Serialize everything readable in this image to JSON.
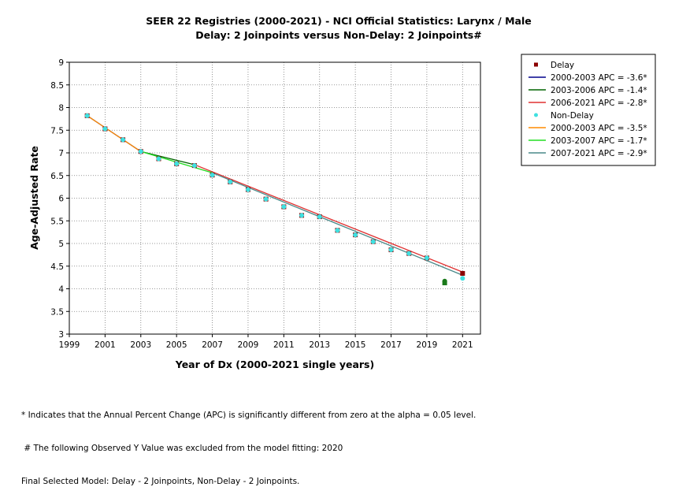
{
  "chart_data": {
    "type": "line",
    "title_lines": [
      "SEER 22 Registries (2000-2021) - NCI Official Statistics: Larynx / Male",
      "Delay: 2 Joinpoints  versus  Non-Delay: 2 Joinpoints#"
    ],
    "xlabel": "Year of Dx (2000-2021 single years)",
    "ylabel": "Age-Adjusted Rate",
    "xlim": [
      1999,
      2022
    ],
    "ylim": [
      3,
      9
    ],
    "x_ticks": [
      "1999",
      "2001",
      "2003",
      "2005",
      "2007",
      "2009",
      "2011",
      "2013",
      "2015",
      "2017",
      "2019",
      "2021"
    ],
    "y_ticks": [
      "3",
      "3.5",
      "4",
      "4.5",
      "5",
      "5.5",
      "6",
      "6.5",
      "7",
      "7.5",
      "8",
      "8.5",
      "9"
    ],
    "grid": true,
    "legend_position": "right",
    "observed": [
      {
        "name": "Delay",
        "color": "#8b0000",
        "marker": "square",
        "points": [
          [
            2000,
            7.82
          ],
          [
            2001,
            7.53
          ],
          [
            2002,
            7.29
          ],
          [
            2003,
            7.03
          ],
          [
            2004,
            6.87
          ],
          [
            2005,
            6.76
          ],
          [
            2006,
            6.72
          ],
          [
            2007,
            6.51
          ],
          [
            2008,
            6.36
          ],
          [
            2009,
            6.19
          ],
          [
            2010,
            5.98
          ],
          [
            2011,
            5.81
          ],
          [
            2012,
            5.62
          ],
          [
            2013,
            5.59
          ],
          [
            2014,
            5.29
          ],
          [
            2015,
            5.19
          ],
          [
            2016,
            5.04
          ],
          [
            2017,
            4.86
          ],
          [
            2018,
            4.78
          ],
          [
            2019,
            4.68
          ],
          [
            2021,
            4.34
          ]
        ],
        "excluded_points": [
          [
            2020,
            4.13
          ]
        ]
      },
      {
        "name": "Non-Delay",
        "color": "#40e0e0",
        "marker": "circle",
        "points": [
          [
            2000,
            7.82
          ],
          [
            2001,
            7.53
          ],
          [
            2002,
            7.29
          ],
          [
            2003,
            7.03
          ],
          [
            2004,
            6.87
          ],
          [
            2005,
            6.76
          ],
          [
            2006,
            6.72
          ],
          [
            2007,
            6.51
          ],
          [
            2008,
            6.36
          ],
          [
            2009,
            6.19
          ],
          [
            2010,
            5.98
          ],
          [
            2011,
            5.81
          ],
          [
            2012,
            5.62
          ],
          [
            2013,
            5.59
          ],
          [
            2014,
            5.29
          ],
          [
            2015,
            5.19
          ],
          [
            2016,
            5.04
          ],
          [
            2017,
            4.86
          ],
          [
            2018,
            4.78
          ],
          [
            2019,
            4.68
          ],
          [
            2021,
            4.23
          ]
        ],
        "excluded_points": [
          [
            2020,
            4.17
          ]
        ]
      }
    ],
    "segments": [
      {
        "label": "2000-2003 APC  =  -3.6*",
        "color": "#00008b",
        "points": [
          [
            2000,
            7.82
          ],
          [
            2003,
            7.03
          ]
        ]
      },
      {
        "label": "2003-2006 APC  =  -1.4*",
        "color": "#006400",
        "points": [
          [
            2003,
            7.03
          ],
          [
            2006,
            6.74
          ]
        ]
      },
      {
        "label": "2006-2021 APC  =  -2.8*",
        "color": "#e03030",
        "points": [
          [
            2006,
            6.74
          ],
          [
            2021,
            4.37
          ]
        ]
      },
      {
        "label": "2000-2003 APC  =  -3.5*",
        "color": "#ff8c00",
        "points": [
          [
            2000,
            7.82
          ],
          [
            2003,
            7.03
          ]
        ]
      },
      {
        "label": "2003-2007 APC  =  -1.7*",
        "color": "#22dd22",
        "points": [
          [
            2003,
            7.03
          ],
          [
            2007,
            6.56
          ]
        ]
      },
      {
        "label": "2007-2021 APC  =  -2.9*",
        "color": "#4a8a8a",
        "points": [
          [
            2007,
            6.56
          ],
          [
            2021,
            4.3
          ]
        ]
      }
    ],
    "legend": [
      {
        "kind": "marker",
        "label": "Delay",
        "color": "#8b0000",
        "marker": "square"
      },
      {
        "kind": "line",
        "label": "2000-2003 APC  =  -3.6*",
        "color": "#00008b"
      },
      {
        "kind": "line",
        "label": "2003-2006 APC  =  -1.4*",
        "color": "#006400"
      },
      {
        "kind": "line",
        "label": "2006-2021 APC  =  -2.8*",
        "color": "#e03030"
      },
      {
        "kind": "marker",
        "label": "Non-Delay",
        "color": "#40e0e0",
        "marker": "circle"
      },
      {
        "kind": "line",
        "label": "2000-2003 APC  =  -3.5*",
        "color": "#ff8c00"
      },
      {
        "kind": "line",
        "label": "2003-2007 APC  =  -1.7*",
        "color": "#22dd22"
      },
      {
        "kind": "line",
        "label": "2007-2021 APC  =  -2.9*",
        "color": "#4a8a8a"
      }
    ],
    "excluded_marker_color": "#1a7a1a"
  },
  "footnotes": {
    "line1": "* Indicates that the Annual Percent Change (APC) is significantly different from zero at the alpha = 0.05 level.",
    "line2": " # The following Observed Y Value was excluded from the model fitting: 2020",
    "line3": "Final Selected Model: Delay - 2 Joinpoints, Non-Delay - 2 Joinpoints."
  }
}
